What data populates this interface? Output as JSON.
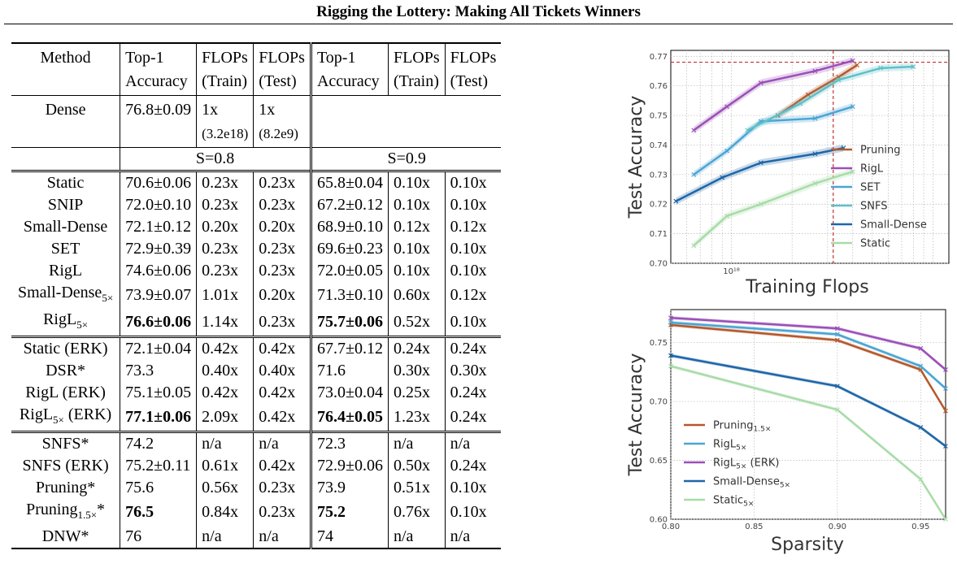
{
  "title": "Rigging the Lottery: Making All Tickets Winners",
  "table": {
    "headers": {
      "method": "Method",
      "top1_line1": "Top-1",
      "top1_line2": "Accuracy",
      "flops_line1": "FLOPs",
      "train_line2": "(Train)",
      "test_line2": "(Test)"
    },
    "dense": {
      "method": "Dense",
      "acc": "76.8±0.09",
      "train": "1x",
      "train_sub": "(3.2e18)",
      "test": "1x",
      "test_sub": "(8.2e9)"
    },
    "sparsity_labels": [
      "S=0.8",
      "S=0.9"
    ],
    "groups": [
      [
        {
          "method": "Static",
          "cells": [
            "70.6±0.06",
            "0.23x",
            "0.23x",
            "65.8±0.04",
            "0.10x",
            "0.10x"
          ]
        },
        {
          "method": "SNIP",
          "cells": [
            "72.0±0.10",
            "0.23x",
            "0.23x",
            "67.2±0.12",
            "0.10x",
            "0.10x"
          ]
        },
        {
          "method": "Small-Dense",
          "cells": [
            "72.1±0.12",
            "0.20x",
            "0.20x",
            "68.9±0.10",
            "0.12x",
            "0.12x"
          ]
        },
        {
          "method": "SET",
          "cells": [
            "72.9±0.39",
            "0.23x",
            "0.23x",
            "69.6±0.23",
            "0.10x",
            "0.10x"
          ]
        },
        {
          "method": "RigL",
          "cells": [
            "74.6±0.06",
            "0.23x",
            "0.23x",
            "72.0±0.05",
            "0.10x",
            "0.10x"
          ]
        },
        {
          "method": "Small-Dense",
          "sub": "5×",
          "cells": [
            "73.9±0.07",
            "1.01x",
            "0.20x",
            "71.3±0.10",
            "0.60x",
            "0.12x"
          ]
        },
        {
          "method": "RigL",
          "sub": "5×",
          "cells": [
            "76.6±0.06",
            "1.14x",
            "0.23x",
            "75.7±0.06",
            "0.52x",
            "0.10x"
          ],
          "bold": [
            0,
            3
          ]
        }
      ],
      [
        {
          "method": "Static (ERK)",
          "cells": [
            "72.1±0.04",
            "0.42x",
            "0.42x",
            "67.7±0.12",
            "0.24x",
            "0.24x"
          ]
        },
        {
          "method": "DSR*",
          "cells": [
            "73.3",
            "0.40x",
            "0.40x",
            "71.6",
            "0.30x",
            "0.30x"
          ]
        },
        {
          "method": "RigL (ERK)",
          "cells": [
            "75.1±0.05",
            "0.42x",
            "0.42x",
            "73.0±0.04",
            "0.25x",
            "0.24x"
          ]
        },
        {
          "method": "RigL",
          "sub": "5×",
          "suffix": " (ERK)",
          "cells": [
            "77.1±0.06",
            "2.09x",
            "0.42x",
            "76.4±0.05",
            "1.23x",
            "0.24x"
          ],
          "bold": [
            0,
            3
          ]
        }
      ],
      [
        {
          "method": "SNFS*",
          "cells": [
            "74.2",
            "n/a",
            "n/a",
            "72.3",
            "n/a",
            "n/a"
          ]
        },
        {
          "method": "SNFS (ERK)",
          "cells": [
            "75.2±0.11",
            "0.61x",
            "0.42x",
            "72.9±0.06",
            "0.50x",
            "0.24x"
          ]
        },
        {
          "method": "Pruning*",
          "cells": [
            "75.6",
            "0.56x",
            "0.23x",
            "73.9",
            "0.51x",
            "0.10x"
          ]
        },
        {
          "method": "Pruning",
          "sub": "1.5×",
          "suffix": "*",
          "cells": [
            "76.5",
            "0.84x",
            "0.23x",
            "75.2",
            "0.76x",
            "0.10x"
          ],
          "bold": [
            0,
            3
          ]
        },
        {
          "method": "DNW*",
          "cells": [
            "76",
            "n/a",
            "n/a",
            "74",
            "n/a",
            "n/a"
          ]
        }
      ]
    ]
  },
  "chart_data": [
    {
      "type": "line",
      "xlabel": "Training Flops",
      "ylabel": "Test Accuracy",
      "xscale": "log",
      "xlim": [
        5e+17,
        1.2e+19
      ],
      "ylim": [
        0.7,
        0.772
      ],
      "xticks": [
        {
          "value": 1e+18,
          "label": "10¹⁸"
        }
      ],
      "yticks": [
        0.7,
        0.71,
        0.72,
        0.73,
        0.74,
        0.75,
        0.76,
        0.77
      ],
      "grid": true,
      "legend_position": "lower-right",
      "reference_lines": {
        "dense_accuracy": 0.768,
        "dense_flops": 3.2e+18
      },
      "series": [
        {
          "name": "Pruning",
          "color": "#b5582a",
          "x": [
            1.7e+18,
            2.4e+18,
            3.4e+18,
            4.2e+18
          ],
          "y": [
            0.75,
            0.757,
            0.763,
            0.767
          ]
        },
        {
          "name": "RigL",
          "color": "#9b4fb8",
          "x": [
            6.5e+17,
            9.5e+17,
            1.4e+18,
            2.6e+18,
            4e+18
          ],
          "y": [
            0.745,
            0.753,
            0.761,
            0.765,
            0.7685
          ]
        },
        {
          "name": "SET",
          "color": "#4aa5d4",
          "x": [
            6.5e+17,
            9.5e+17,
            1.4e+18,
            2.6e+18,
            4e+18
          ],
          "y": [
            0.73,
            0.738,
            0.748,
            0.749,
            0.753
          ]
        },
        {
          "name": "SNFS",
          "color": "#5fc0c8",
          "x": [
            1.2e+18,
            2.2e+18,
            3.4e+18,
            5.5e+18,
            8e+18
          ],
          "y": [
            0.745,
            0.754,
            0.762,
            0.766,
            0.7665
          ]
        },
        {
          "name": "Small-Dense",
          "color": "#1e66a8",
          "x": [
            5.3e+17,
            9e+17,
            1.4e+18,
            2.6e+18,
            3.6e+18
          ],
          "y": [
            0.721,
            0.729,
            0.734,
            0.737,
            0.739
          ]
        },
        {
          "name": "Static",
          "color": "#a8dca8",
          "x": [
            6.5e+17,
            9.5e+17,
            1.4e+18,
            2.6e+18,
            4e+18
          ],
          "y": [
            0.706,
            0.716,
            0.72,
            0.727,
            0.731
          ]
        }
      ]
    },
    {
      "type": "line",
      "xlabel": "Sparsity",
      "ylabel": "Test Accuracy",
      "xlim": [
        0.8,
        0.965
      ],
      "ylim": [
        0.6,
        0.778
      ],
      "xticks": [
        0.8,
        0.85,
        0.9,
        0.95
      ],
      "yticks": [
        0.6,
        0.65,
        0.7,
        0.75
      ],
      "grid": true,
      "legend_position": "lower-left",
      "series": [
        {
          "name": "Pruning",
          "sub": "1.5×",
          "color": "#b5582a",
          "x": [
            0.8,
            0.9,
            0.95,
            0.965
          ],
          "y": [
            0.765,
            0.752,
            0.727,
            0.692
          ]
        },
        {
          "name": "RigL",
          "sub": "5×",
          "color": "#4aa5d4",
          "x": [
            0.8,
            0.9,
            0.95,
            0.965
          ],
          "y": [
            0.767,
            0.757,
            0.73,
            0.711
          ]
        },
        {
          "name": "RigL",
          "sub": "5×",
          "suffix": " (ERK)",
          "color": "#9b4fb8",
          "x": [
            0.8,
            0.9,
            0.95,
            0.965
          ],
          "y": [
            0.771,
            0.762,
            0.745,
            0.727
          ]
        },
        {
          "name": "Small-Dense",
          "sub": "5×",
          "color": "#1e66a8",
          "x": [
            0.8,
            0.9,
            0.95,
            0.965
          ],
          "y": [
            0.739,
            0.713,
            0.678,
            0.662
          ]
        },
        {
          "name": "Static",
          "sub": "5×",
          "color": "#a8dca8",
          "x": [
            0.8,
            0.9,
            0.95,
            0.965
          ],
          "y": [
            0.73,
            0.693,
            0.634,
            0.6
          ]
        }
      ]
    }
  ]
}
